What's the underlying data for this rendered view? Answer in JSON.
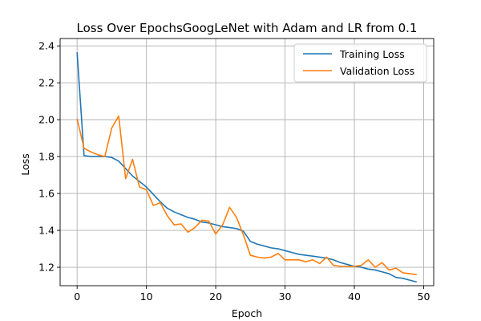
{
  "chart_data": {
    "type": "line",
    "title": "Loss Over EpochsGoogLeNet with Adam and LR from 0.1",
    "xlabel": "Epoch",
    "ylabel": "Loss",
    "xlim": [
      -2.45,
      51.45
    ],
    "ylim": [
      1.1,
      2.44
    ],
    "xticks": [
      0,
      10,
      20,
      30,
      40,
      50
    ],
    "yticks": [
      1.2,
      1.4,
      1.6,
      1.8,
      2.0,
      2.2,
      2.4
    ],
    "grid": true,
    "legend_position": "top-right",
    "x": [
      0,
      1,
      2,
      3,
      4,
      5,
      6,
      7,
      8,
      9,
      10,
      11,
      12,
      13,
      14,
      15,
      16,
      17,
      18,
      19,
      20,
      21,
      22,
      23,
      24,
      25,
      26,
      27,
      28,
      29,
      30,
      31,
      32,
      33,
      34,
      35,
      36,
      37,
      38,
      39,
      40,
      41,
      42,
      43,
      44,
      45,
      46,
      47,
      48,
      49
    ],
    "series": [
      {
        "name": "Training Loss",
        "color": "#1f77b4",
        "values": [
          2.365,
          1.805,
          1.8,
          1.8,
          1.8,
          1.795,
          1.775,
          1.735,
          1.695,
          1.665,
          1.635,
          1.595,
          1.555,
          1.52,
          1.5,
          1.485,
          1.47,
          1.46,
          1.445,
          1.44,
          1.43,
          1.42,
          1.415,
          1.41,
          1.395,
          1.34,
          1.325,
          1.315,
          1.305,
          1.3,
          1.29,
          1.28,
          1.27,
          1.265,
          1.26,
          1.255,
          1.25,
          1.24,
          1.225,
          1.215,
          1.205,
          1.2,
          1.19,
          1.185,
          1.175,
          1.165,
          1.145,
          1.14,
          1.13,
          1.12
        ]
      },
      {
        "name": "Validation Loss",
        "color": "#ff7f0e",
        "values": [
          2.005,
          1.845,
          1.825,
          1.81,
          1.8,
          1.955,
          2.02,
          1.68,
          1.785,
          1.635,
          1.62,
          1.535,
          1.55,
          1.48,
          1.43,
          1.435,
          1.39,
          1.415,
          1.455,
          1.45,
          1.38,
          1.43,
          1.525,
          1.47,
          1.375,
          1.265,
          1.255,
          1.25,
          1.255,
          1.275,
          1.24,
          1.24,
          1.24,
          1.23,
          1.24,
          1.22,
          1.255,
          1.21,
          1.205,
          1.205,
          1.205,
          1.21,
          1.24,
          1.2,
          1.225,
          1.185,
          1.195,
          1.17,
          1.165,
          1.16
        ]
      }
    ]
  }
}
